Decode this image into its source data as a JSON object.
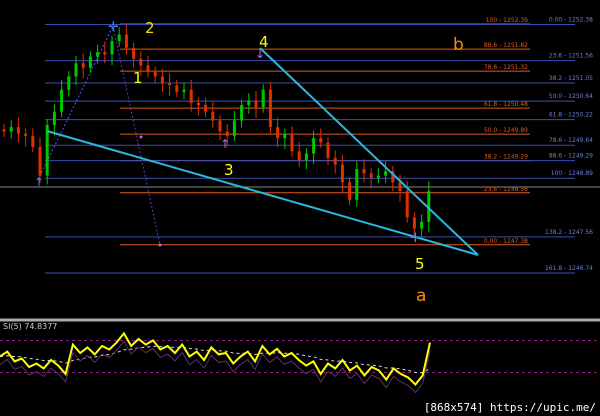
{
  "chart_data": {
    "type": "candlestick",
    "colors": {
      "up": "#00c800",
      "down": "#e03000",
      "background": "#000000",
      "fib_a": "#e05a1e",
      "fib_b": "#3a4fb0",
      "trend": "#2ab8e0",
      "indicator": "#ffff00"
    },
    "price_range": [
      1246.6,
      1252.7
    ],
    "closes": [
      1249.95,
      1250.05,
      1249.9,
      1249.85,
      1249.6,
      1248.95,
      1250.1,
      1250.4,
      1250.9,
      1251.2,
      1251.5,
      1251.4,
      1251.65,
      1251.75,
      1251.7,
      1252.0,
      1252.15,
      1251.85,
      1251.6,
      1251.45,
      1251.3,
      1251.2,
      1251.05,
      1251.0,
      1250.85,
      1250.9,
      1250.6,
      1250.55,
      1250.4,
      1250.2,
      1249.95,
      1249.85,
      1250.2,
      1250.55,
      1250.65,
      1250.5,
      1250.9,
      1250.05,
      1249.8,
      1249.9,
      1249.5,
      1249.3,
      1249.45,
      1249.8,
      1249.7,
      1249.35,
      1249.2,
      1248.8,
      1248.4,
      1249.1,
      1249.0,
      1248.9,
      1248.95,
      1249.05,
      1248.8,
      1248.6,
      1248.0,
      1247.75,
      1247.9,
      1248.6
    ],
    "current_price": 1248.7,
    "fib_set_a": [
      {
        "label": "100 - 1252.39",
        "price": 1252.39
      },
      {
        "label": "88.6 - 1251.82",
        "price": 1251.82
      },
      {
        "label": "78.6 - 1251.32",
        "price": 1251.32
      },
      {
        "label": "61.8 - 1250.48",
        "price": 1250.48
      },
      {
        "label": "50.0 - 1249.89",
        "price": 1249.89
      },
      {
        "label": "38.2 - 1249.29",
        "price": 1249.29
      },
      {
        "label": "23.6 - 1248.56",
        "price": 1248.56
      },
      {
        "label": "0.00 - 1247.38",
        "price": 1247.38
      }
    ],
    "fib_set_b": [
      {
        "label": "0.00 - 1252.38",
        "price": 1252.38
      },
      {
        "label": "23.6 - 1251.56",
        "price": 1251.56
      },
      {
        "label": "38.2 - 1251.05",
        "price": 1251.05
      },
      {
        "label": "50.0 - 1250.64",
        "price": 1250.64
      },
      {
        "label": "61.8 - 1250.22",
        "price": 1250.22
      },
      {
        "label": "78.6 - 1249.64",
        "price": 1249.64
      },
      {
        "label": "88.6 - 1249.29",
        "price": 1249.29
      },
      {
        "label": "100 - 1248.89",
        "price": 1248.89
      },
      {
        "label": "138.2 - 1247.56",
        "price": 1247.56
      },
      {
        "label": "161.8 - 1246.74",
        "price": 1246.74
      }
    ],
    "wave_labels": [
      {
        "text": "1",
        "color": "#ffff00"
      },
      {
        "text": "2",
        "color": "#ffd700"
      },
      {
        "text": "3",
        "color": "#ffff00"
      },
      {
        "text": "4",
        "color": "#ffff00"
      },
      {
        "text": "5",
        "color": "#ffff00"
      },
      {
        "text": "a",
        "color": "#ff8c00"
      },
      {
        "text": "b",
        "color": "#ff8c00"
      }
    ],
    "indicator": {
      "label": "SI(5) 74.8377",
      "levels": [
        75,
        25
      ],
      "values": [
        55,
        62,
        48,
        52,
        40,
        45,
        38,
        50,
        42,
        30,
        72,
        60,
        68,
        58,
        70,
        65,
        75,
        88,
        70,
        80,
        72,
        78,
        65,
        70,
        60,
        72,
        55,
        62,
        50,
        68,
        58,
        60,
        45,
        55,
        62,
        48,
        70,
        58,
        66,
        55,
        60,
        50,
        42,
        48,
        30,
        45,
        38,
        50,
        35,
        42,
        28,
        40,
        35,
        22,
        38,
        30,
        25,
        15,
        28,
        74.8
      ]
    }
  },
  "watermark": "[868x574] https://upic.me/"
}
